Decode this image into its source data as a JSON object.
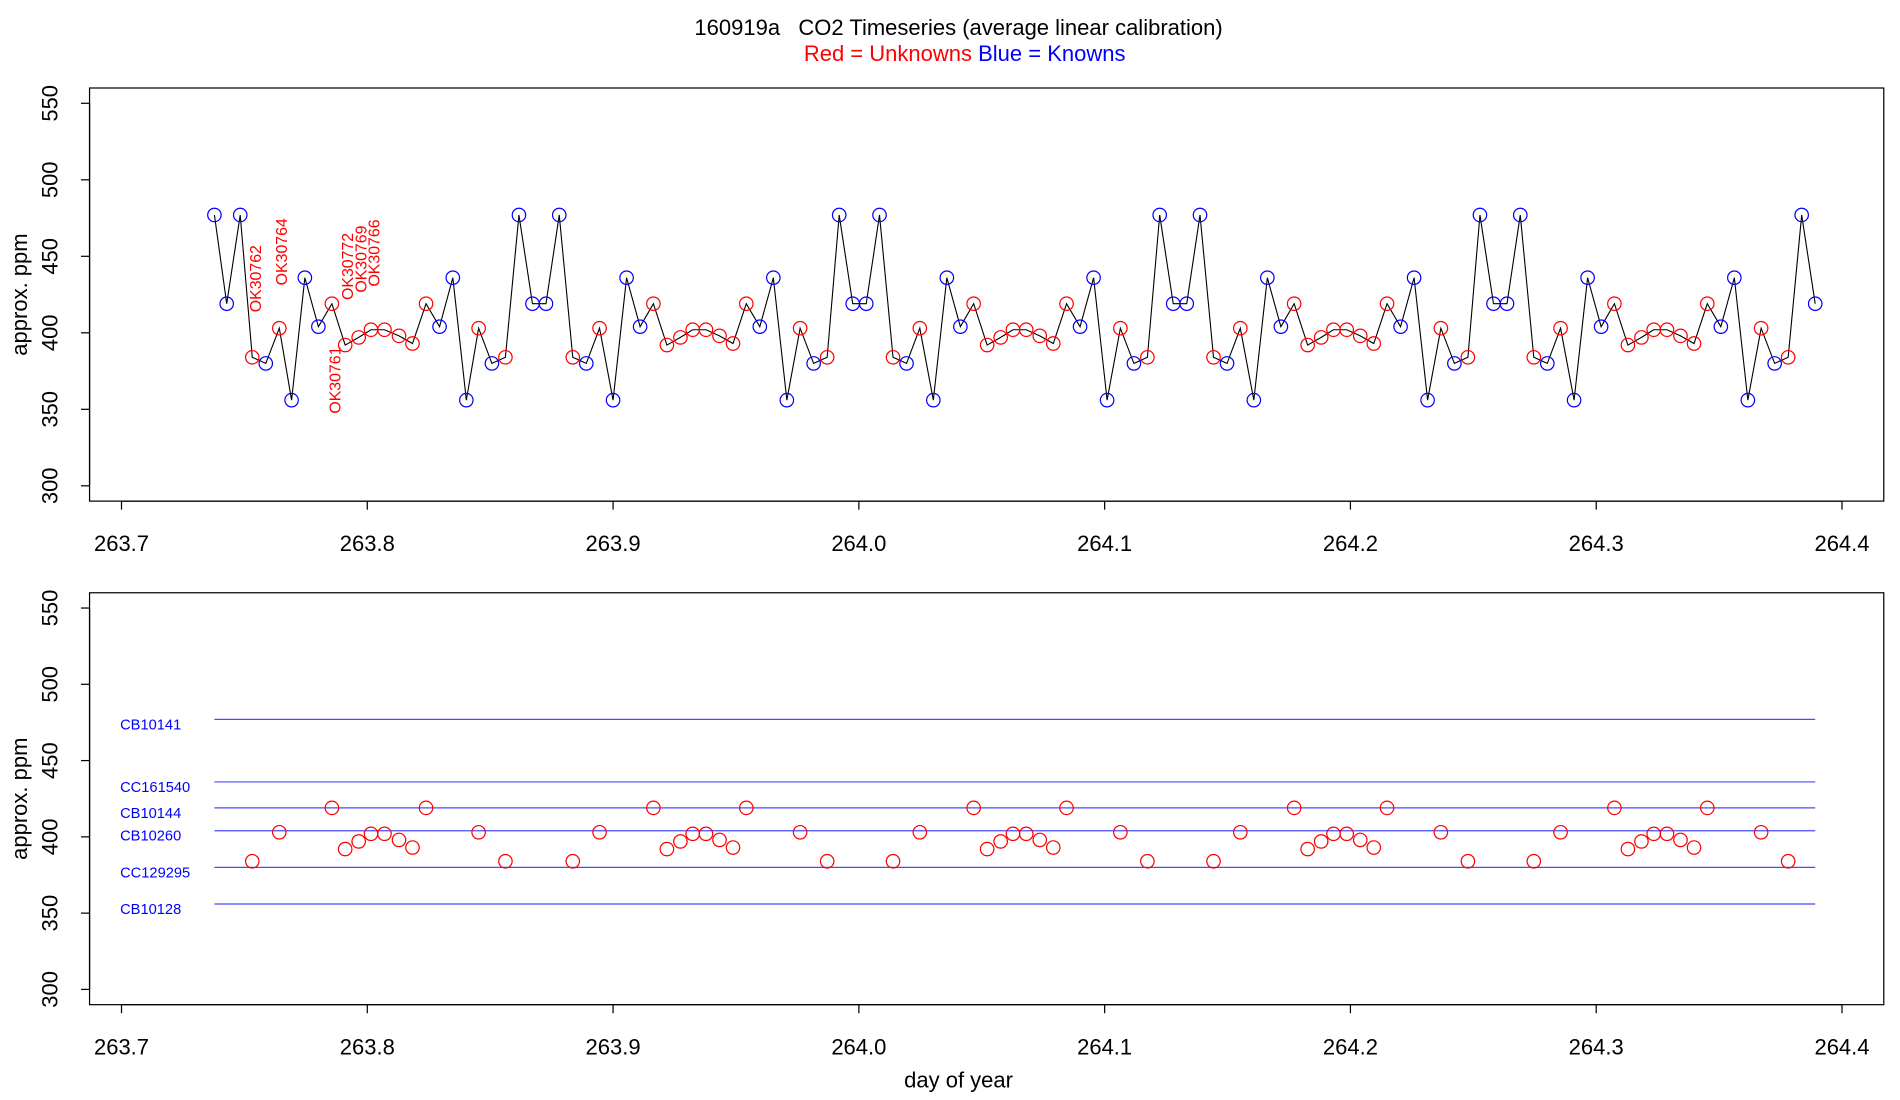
{
  "chart_data": [
    {
      "type": "line",
      "title": "160919a   CO2 Timeseries (average linear calibration)",
      "subtitle": [
        {
          "text": "Red = Unknowns",
          "color": "red"
        },
        {
          "text": "Blue = Knowns",
          "color": "blue"
        }
      ],
      "ylabel": "approx. ppm",
      "x": [
        263.7378,
        263.7428,
        263.7483,
        263.7532,
        263.7587,
        263.7642,
        263.7692,
        263.7746,
        263.7801,
        263.7856,
        263.791,
        263.7965,
        263.8015,
        263.807,
        263.8129,
        263.8184,
        263.8239,
        263.8294,
        263.8348,
        263.8403,
        263.8453,
        263.8507,
        263.8562,
        263.8617,
        263.8672,
        263.8727,
        263.8781,
        263.8836,
        263.8891,
        263.8945,
        263.9,
        263.9055,
        263.911,
        263.9164,
        263.9219,
        263.9274,
        263.9324,
        263.9378,
        263.9433,
        263.9488,
        263.9542,
        263.9597,
        263.9652,
        263.9707,
        263.9761,
        263.9816,
        263.9871,
        263.992,
        263.9975,
        264.003,
        264.0084,
        264.0139,
        264.0194,
        264.0248,
        264.0303,
        264.0358,
        264.0413,
        264.0467,
        264.0522,
        264.0577,
        264.0627,
        264.0681,
        264.0736,
        264.0791,
        264.0845,
        264.09,
        264.0955,
        264.101,
        264.1064,
        264.1119,
        264.1174,
        264.1224,
        264.1279,
        264.1334,
        264.1388,
        264.1443,
        264.1498,
        264.1552,
        264.1607,
        264.1662,
        264.1717,
        264.1771,
        264.1826,
        264.1881,
        264.1931,
        264.1985,
        264.204,
        264.2095,
        264.2149,
        264.2204,
        264.2259,
        264.2314,
        264.2368,
        264.2423,
        264.2478,
        264.2527,
        264.2582,
        264.2637,
        264.2691,
        264.2746,
        264.2801,
        264.2855,
        264.291,
        264.2965,
        264.302,
        264.3074,
        264.3129,
        264.3184,
        264.3234,
        264.3288,
        264.3343,
        264.3398,
        264.3452,
        264.3507,
        264.3562,
        264.3617,
        264.3671,
        264.3726,
        264.3781,
        264.3836,
        264.3891
      ],
      "values": [
        477,
        419,
        477,
        384,
        380,
        403,
        356,
        436,
        404,
        419,
        392,
        397,
        402,
        402,
        398,
        393,
        419,
        404,
        436,
        356,
        403,
        380,
        384,
        477,
        419,
        419,
        477,
        384,
        380,
        403,
        356,
        436,
        404,
        419,
        392,
        397,
        402,
        402,
        398,
        393,
        419,
        404,
        436,
        356,
        403,
        380,
        384,
        477,
        419,
        419,
        477,
        384,
        380,
        403,
        356,
        436,
        404,
        419,
        392,
        397,
        402,
        402,
        398,
        393,
        419,
        404,
        436,
        356,
        403,
        380,
        384,
        477,
        419,
        419,
        477,
        384,
        380,
        403,
        356,
        436,
        404,
        419,
        392,
        397,
        402,
        402,
        398,
        393,
        419,
        404,
        436,
        356,
        403,
        380,
        384,
        477,
        419,
        419,
        477,
        384,
        380,
        403,
        356,
        436,
        404,
        419,
        392,
        397,
        402,
        402,
        398,
        393,
        419,
        404,
        436,
        356,
        403,
        380,
        384,
        477,
        419
      ],
      "point_colors": [
        "blue",
        "blue",
        "blue",
        "red",
        "blue",
        "red",
        "blue",
        "blue",
        "blue",
        "red",
        "red",
        "red",
        "red",
        "red",
        "red",
        "red",
        "red",
        "blue",
        "blue",
        "blue",
        "red",
        "blue",
        "red",
        "blue",
        "blue",
        "blue",
        "blue",
        "red",
        "blue",
        "red",
        "blue",
        "blue",
        "blue",
        "red",
        "red",
        "red",
        "red",
        "red",
        "red",
        "red",
        "red",
        "blue",
        "blue",
        "blue",
        "red",
        "blue",
        "red",
        "blue",
        "blue",
        "blue",
        "blue",
        "red",
        "blue",
        "red",
        "blue",
        "blue",
        "blue",
        "red",
        "red",
        "red",
        "red",
        "red",
        "red",
        "red",
        "red",
        "blue",
        "blue",
        "blue",
        "red",
        "blue",
        "red",
        "blue",
        "blue",
        "blue",
        "blue",
        "red",
        "blue",
        "red",
        "blue",
        "blue",
        "blue",
        "red",
        "red",
        "red",
        "red",
        "red",
        "red",
        "red",
        "red",
        "blue",
        "blue",
        "blue",
        "red",
        "blue",
        "red",
        "blue",
        "blue",
        "blue",
        "blue",
        "red",
        "blue",
        "red",
        "blue",
        "blue",
        "blue",
        "red",
        "red",
        "red",
        "red",
        "red",
        "red",
        "red",
        "red",
        "blue",
        "blue",
        "blue",
        "red",
        "blue",
        "red",
        "blue",
        "blue"
      ],
      "line_color": "#000000",
      "annotations": [
        "OK30762",
        "OK30764",
        "OK30761",
        "OK30772",
        "OK30769",
        "OK30766"
      ],
      "xlim": [
        263.687,
        264.417
      ],
      "ylim": [
        290,
        560
      ],
      "xticks": [
        263.7,
        263.8,
        263.9,
        {
          "value": 264,
          "label": "264.0"
        },
        264.1,
        264.2,
        264.3,
        264.4
      ],
      "yticks": [
        300,
        350,
        400,
        450,
        500,
        550
      ]
    },
    {
      "type": "scatter",
      "ylabel": "approx. ppm",
      "xlabel": "day of year",
      "x": [
        263.7532,
        263.7642,
        263.7856,
        263.791,
        263.7965,
        263.8015,
        263.807,
        263.8129,
        263.8184,
        263.8239,
        263.8453,
        263.8562,
        263.8836,
        263.8945,
        263.9164,
        263.9219,
        263.9274,
        263.9324,
        263.9378,
        263.9433,
        263.9488,
        263.9542,
        263.9761,
        263.9871,
        264.0139,
        264.0248,
        264.0467,
        264.0522,
        264.0577,
        264.0627,
        264.0681,
        264.0736,
        264.0791,
        264.0845,
        264.1064,
        264.1174,
        264.1443,
        264.1552,
        264.1771,
        264.1826,
        264.1881,
        264.1931,
        264.1985,
        264.204,
        264.2095,
        264.2149,
        264.2368,
        264.2478,
        264.2746,
        264.2855,
        264.3074,
        264.3129,
        264.3184,
        264.3234,
        264.3288,
        264.3343,
        264.3398,
        264.3452,
        264.3671,
        264.3781
      ],
      "values": [
        384,
        403,
        419,
        392,
        397,
        402,
        402,
        398,
        393,
        419,
        403,
        384,
        384,
        403,
        419,
        392,
        397,
        402,
        402,
        398,
        393,
        419,
        403,
        384,
        384,
        403,
        419,
        392,
        397,
        402,
        402,
        398,
        393,
        419,
        403,
        384,
        384,
        403,
        419,
        392,
        397,
        402,
        402,
        398,
        393,
        419,
        403,
        384,
        384,
        403,
        419,
        392,
        397,
        402,
        402,
        398,
        393,
        419,
        403,
        384
      ],
      "color": "red",
      "reference_lines": [
        {
          "name": "CB10141",
          "value": 477
        },
        {
          "name": "CC161540",
          "value": 436
        },
        {
          "name": "CB10144",
          "value": 419
        },
        {
          "name": "CB10260",
          "value": 404
        },
        {
          "name": "CC129295",
          "value": 380
        },
        {
          "name": "CB10128",
          "value": 356
        }
      ],
      "reference_color": "#4a4aff",
      "xlim": [
        263.687,
        264.417
      ],
      "ylim": [
        290,
        560
      ],
      "xticks": [
        263.7,
        263.8,
        263.9,
        {
          "value": 264,
          "label": "264.0"
        },
        264.1,
        264.2,
        264.3,
        264.4
      ],
      "yticks": [
        300,
        350,
        400,
        450,
        500,
        550
      ]
    }
  ]
}
